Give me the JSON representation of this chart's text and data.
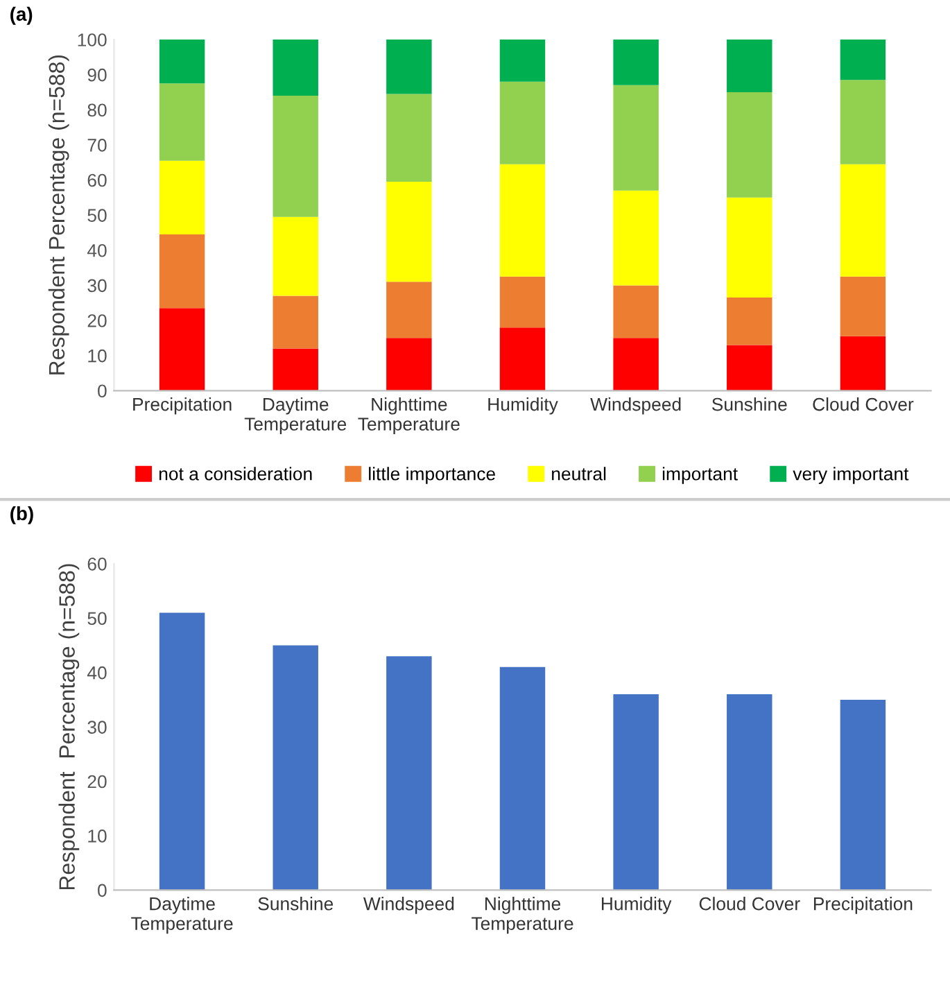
{
  "chart_data": [
    {
      "type": "bar",
      "stacked": true,
      "ylabel": "Respondent Percentage (n=588)",
      "annotations": [
        "(a)"
      ],
      "categories": [
        "Precipitation",
        "Daytime\nTemperature",
        "Nighttime\nTemperature",
        "Humidity",
        "Windspeed",
        "Sunshine",
        "Cloud Cover"
      ],
      "series": [
        {
          "name": "not a consideration",
          "color": "#ff0000",
          "values": [
            23.5,
            12,
            15,
            18,
            15,
            13,
            15.5
          ]
        },
        {
          "name": "little importance",
          "color": "#ed7d31",
          "values": [
            21,
            15,
            16,
            14.5,
            15,
            13.5,
            17
          ]
        },
        {
          "name": "neutral",
          "color": "#ffff00",
          "values": [
            21,
            22.5,
            28.5,
            32,
            27,
            28.5,
            32
          ]
        },
        {
          "name": "important",
          "color": "#92d050",
          "values": [
            22,
            34.5,
            25,
            23.5,
            30,
            30,
            24
          ]
        },
        {
          "name": "very important",
          "color": "#00b050",
          "values": [
            12.5,
            16,
            15.5,
            12,
            13,
            15,
            11.5
          ]
        }
      ],
      "ylim": [
        0,
        100
      ],
      "yticks": [
        0,
        10,
        20,
        30,
        40,
        50,
        60,
        70,
        80,
        90,
        100
      ],
      "grid": false,
      "legend": "bottom"
    },
    {
      "type": "bar",
      "ylabel": "Respondent  Percentage (n=588)",
      "annotations": [
        "(b)"
      ],
      "categories": [
        "Daytime\nTemperature",
        "Sunshine",
        "Windspeed",
        "Nighttime\nTemperature",
        "Humidity",
        "Cloud Cover",
        "Precipitation"
      ],
      "values": [
        51,
        45,
        43,
        41,
        36,
        36,
        35
      ],
      "color": "#4472c4",
      "ylim": [
        0,
        60
      ],
      "yticks": [
        0,
        10,
        20,
        30,
        40,
        50,
        60
      ],
      "grid": false,
      "legend": false
    }
  ]
}
